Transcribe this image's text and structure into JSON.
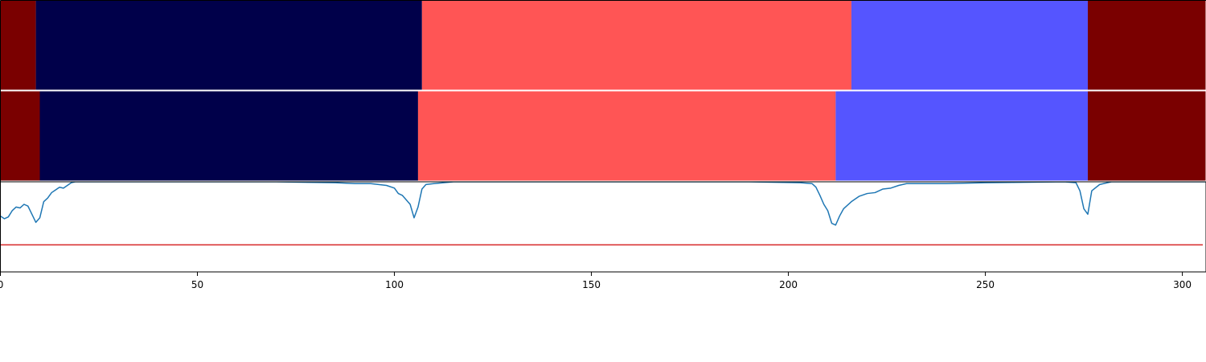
{
  "chart_data": {
    "type": "segmentation-timeline",
    "x_range": [
      0,
      306
    ],
    "segment_panels": [
      {
        "segments": [
          {
            "start": 0,
            "end": 9,
            "color": "#7a0000"
          },
          {
            "start": 9,
            "end": 107,
            "color": "#00004a"
          },
          {
            "start": 107,
            "end": 216,
            "color": "#ff5555"
          },
          {
            "start": 216,
            "end": 276,
            "color": "#5555ff"
          },
          {
            "start": 276,
            "end": 306,
            "color": "#7a0000"
          }
        ]
      },
      {
        "segments": [
          {
            "start": 0,
            "end": 10,
            "color": "#7a0000"
          },
          {
            "start": 10,
            "end": 106,
            "color": "#00004a"
          },
          {
            "start": 106,
            "end": 212,
            "color": "#ff5555"
          },
          {
            "start": 212,
            "end": 276,
            "color": "#5555ff"
          },
          {
            "start": 276,
            "end": 306,
            "color": "#7a0000"
          }
        ]
      }
    ],
    "line_panel": {
      "y_range": [
        0,
        1
      ],
      "threshold": {
        "value": 0.3,
        "color": "#d62728"
      },
      "series": {
        "color": "#1f77b4",
        "points": [
          [
            0,
            0.62
          ],
          [
            1,
            0.59
          ],
          [
            2,
            0.61
          ],
          [
            3,
            0.68
          ],
          [
            4,
            0.72
          ],
          [
            5,
            0.71
          ],
          [
            6,
            0.75
          ],
          [
            7,
            0.73
          ],
          [
            8,
            0.64
          ],
          [
            9,
            0.55
          ],
          [
            10,
            0.6
          ],
          [
            11,
            0.78
          ],
          [
            12,
            0.82
          ],
          [
            13,
            0.88
          ],
          [
            14,
            0.91
          ],
          [
            15,
            0.94
          ],
          [
            16,
            0.93
          ],
          [
            17,
            0.96
          ],
          [
            18,
            0.99
          ],
          [
            19,
            1.0
          ],
          [
            30,
            1.0
          ],
          [
            50,
            1.0
          ],
          [
            70,
            1.0
          ],
          [
            85,
            0.99
          ],
          [
            90,
            0.98
          ],
          [
            94,
            0.98
          ],
          [
            96,
            0.97
          ],
          [
            98,
            0.96
          ],
          [
            100,
            0.93
          ],
          [
            101,
            0.87
          ],
          [
            102,
            0.85
          ],
          [
            103,
            0.8
          ],
          [
            104,
            0.75
          ],
          [
            105,
            0.6
          ],
          [
            106,
            0.72
          ],
          [
            107,
            0.92
          ],
          [
            108,
            0.97
          ],
          [
            110,
            0.98
          ],
          [
            115,
            1.0
          ],
          [
            130,
            1.0
          ],
          [
            150,
            1.0
          ],
          [
            170,
            1.0
          ],
          [
            190,
            1.0
          ],
          [
            203,
            0.99
          ],
          [
            206,
            0.98
          ],
          [
            207,
            0.94
          ],
          [
            208,
            0.85
          ],
          [
            209,
            0.75
          ],
          [
            210,
            0.68
          ],
          [
            211,
            0.54
          ],
          [
            212,
            0.52
          ],
          [
            213,
            0.62
          ],
          [
            214,
            0.7
          ],
          [
            216,
            0.78
          ],
          [
            218,
            0.84
          ],
          [
            220,
            0.87
          ],
          [
            222,
            0.88
          ],
          [
            224,
            0.92
          ],
          [
            226,
            0.93
          ],
          [
            228,
            0.96
          ],
          [
            230,
            0.98
          ],
          [
            240,
            0.98
          ],
          [
            250,
            0.99
          ],
          [
            270,
            1.0
          ],
          [
            273,
            0.99
          ],
          [
            274,
            0.9
          ],
          [
            275,
            0.7
          ],
          [
            276,
            0.64
          ],
          [
            277,
            0.9
          ],
          [
            279,
            0.97
          ],
          [
            282,
            1.0
          ],
          [
            306,
            1.0
          ]
        ]
      }
    },
    "x_ticks": [
      0,
      50,
      100,
      150,
      200,
      250,
      300
    ]
  }
}
